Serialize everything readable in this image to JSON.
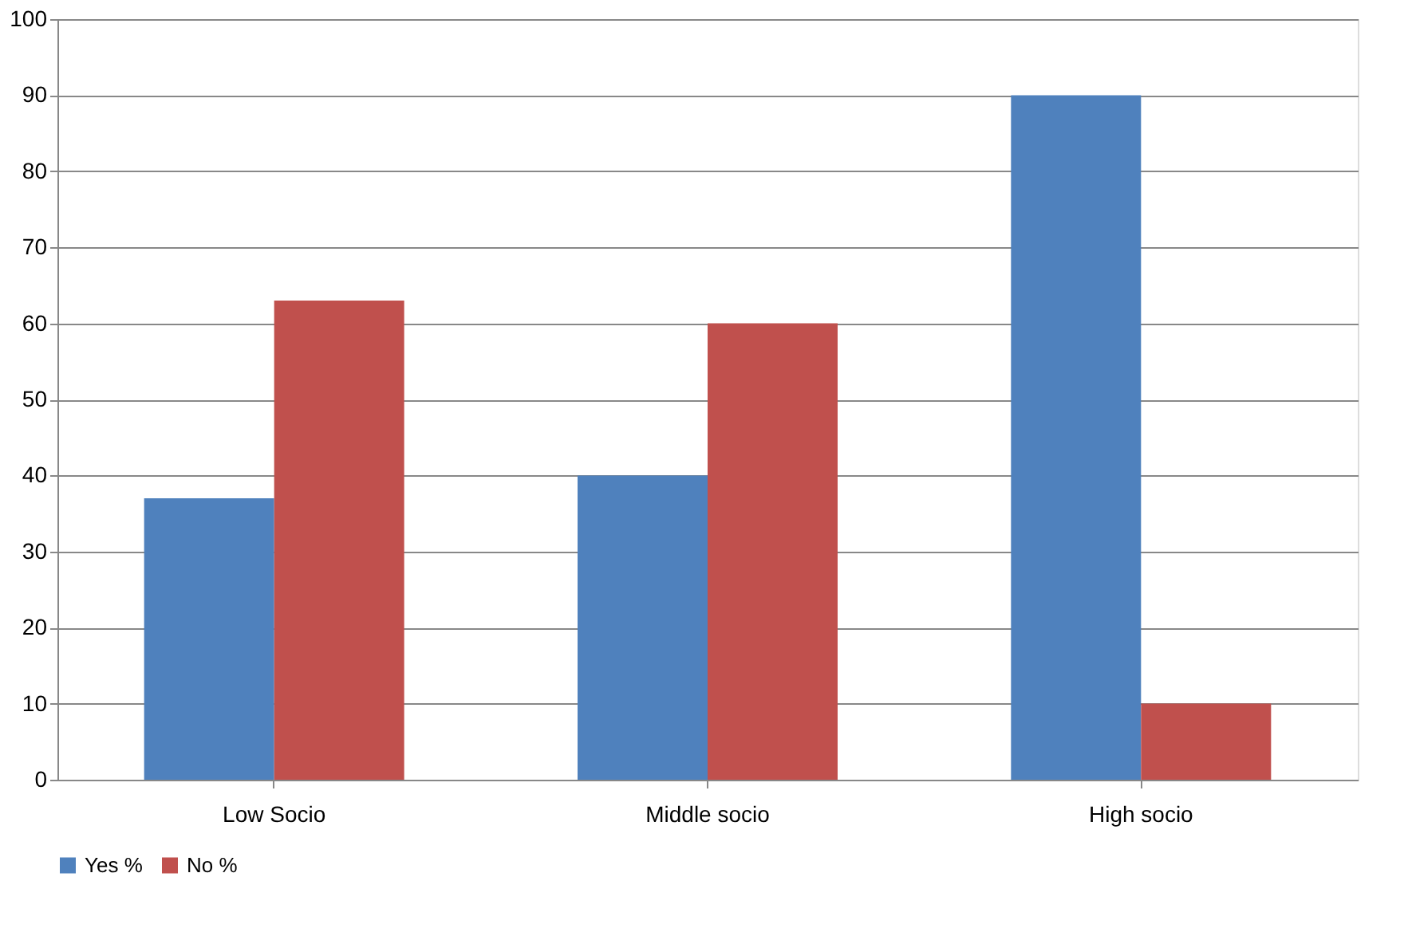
{
  "chart_data": {
    "type": "bar",
    "categories": [
      "Low Socio",
      "Middle socio",
      "High socio"
    ],
    "series": [
      {
        "name": "Yes %",
        "color": "#4f81bd",
        "values": [
          37,
          40,
          90
        ]
      },
      {
        "name": "No %",
        "color": "#c0504d",
        "values": [
          63,
          60,
          10
        ]
      }
    ],
    "ylim": [
      0,
      100
    ],
    "yticks": [
      0,
      10,
      20,
      30,
      40,
      50,
      60,
      70,
      80,
      90,
      100
    ],
    "grid": "y",
    "legend": "bottom"
  }
}
